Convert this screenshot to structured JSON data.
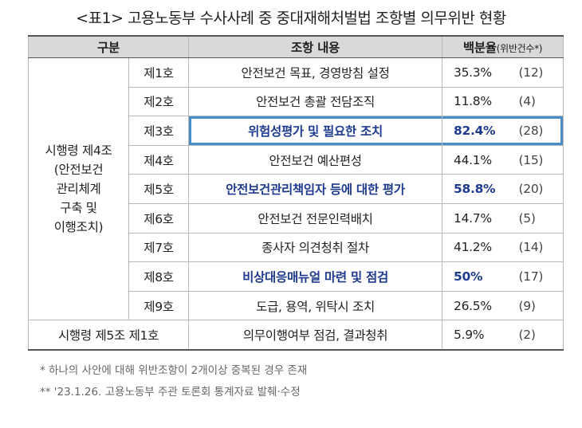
{
  "title": "<표1> 고용노동부 수사사례 중 중대재해처벌법 조항별 의무위반 현황",
  "headers": {
    "category": "구분",
    "content": "조항 내용",
    "rate": "백분율",
    "rate_suffix": "(위반건수*)"
  },
  "group_label": "시행령 제4조\n(안전보건\n관리체계\n구축 및\n이행조치)",
  "rows": [
    {
      "item": "제1호",
      "content": "안전보건 목표, 경영방침 설정",
      "pct": "35.3%",
      "count": "(12)"
    },
    {
      "item": "제2호",
      "content": "안전보건 총괄 전담조직",
      "pct": "11.8%",
      "count": "(4)"
    },
    {
      "item": "제3호",
      "content": "위험성평가 및 필요한 조치",
      "pct": "82.4%",
      "count": "(28)"
    },
    {
      "item": "제4호",
      "content": "안전보건 예산편성",
      "pct": "44.1%",
      "count": "(15)"
    },
    {
      "item": "제5호",
      "content": "안전보건관리책임자 등에 대한 평가",
      "pct": "58.8%",
      "count": "(20)"
    },
    {
      "item": "제6호",
      "content": "안전보건 전문인력배치",
      "pct": "14.7%",
      "count": "(5)"
    },
    {
      "item": "제7호",
      "content": "종사자 의견청취 절차",
      "pct": "41.2%",
      "count": "(14)"
    },
    {
      "item": "제8호",
      "content": "비상대응매뉴얼 마련 및 점검",
      "pct": "50%",
      "count": "(17)"
    },
    {
      "item": "제9호",
      "content": "도급, 용역, 위탁시 조치",
      "pct": "26.5%",
      "count": "(9)"
    }
  ],
  "last_row": {
    "category": "시행령 제5조 제1호",
    "content": "의무이행여부 점검, 결과청취",
    "pct": "5.9%",
    "count": "(2)"
  },
  "notes": [
    "* 하나의 사안에 대해 위반조항이 2개이상 중복된 경우 존재",
    "** '23.1.26. 고용노동부 주관 토론회 통계자료 발췌·수정"
  ],
  "colors": {
    "highlight_text": "#1f3b8f",
    "box_border": "#4a8ec9",
    "header_bg": "#d9d9d9"
  }
}
